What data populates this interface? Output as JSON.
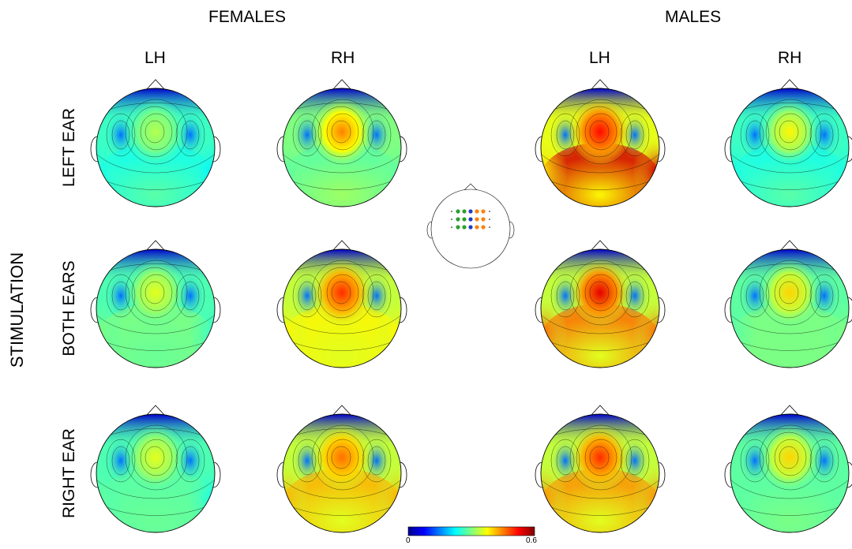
{
  "groups": {
    "females": "FEMALES",
    "males": "MALES"
  },
  "hemispheres": {
    "left": "LH",
    "right": "RH"
  },
  "axis_title": "STIMULATION",
  "conditions": {
    "left_ear": "LEFT EAR",
    "both_ears": "BOTH EARS",
    "right_ear": "RIGHT EAR"
  },
  "colorbar": {
    "min_label": "0",
    "max_label": "0.6",
    "colormap": "jet",
    "colors": [
      "#00008f",
      "#0000ff",
      "#0080ff",
      "#00ffff",
      "#80ff80",
      "#ffff00",
      "#ff8000",
      "#ff0000",
      "#800000"
    ]
  },
  "electrode_legend": {
    "colors": {
      "left": "#2ca02c",
      "mid": "#1f3fbf",
      "right": "#ff7f0e"
    }
  },
  "maps": [
    {
      "name": "female-lh-left-ear",
      "central": 0.33,
      "periph": 0.26,
      "rim": [
        0.24,
        0.22
      ]
    },
    {
      "name": "female-rh-left-ear",
      "central": 0.45,
      "periph": 0.3,
      "rim": [
        0.28,
        0.28
      ]
    },
    {
      "name": "male-lh-left-ear",
      "central": 0.52,
      "periph": 0.36,
      "rim": [
        0.4,
        0.55
      ]
    },
    {
      "name": "male-rh-left-ear",
      "central": 0.38,
      "periph": 0.26,
      "rim": [
        0.24,
        0.24
      ]
    },
    {
      "name": "female-lh-both-ears",
      "central": 0.36,
      "periph": 0.27,
      "rim": [
        0.3,
        0.26
      ]
    },
    {
      "name": "female-rh-both-ears",
      "central": 0.5,
      "periph": 0.34,
      "rim": [
        0.38,
        0.38
      ]
    },
    {
      "name": "male-lh-both-ears",
      "central": 0.54,
      "periph": 0.34,
      "rim": [
        0.46,
        0.46
      ]
    },
    {
      "name": "male-rh-both-ears",
      "central": 0.4,
      "periph": 0.28,
      "rim": [
        0.28,
        0.3
      ]
    },
    {
      "name": "female-lh-right-ear",
      "central": 0.36,
      "periph": 0.27,
      "rim": [
        0.28,
        0.24
      ]
    },
    {
      "name": "female-rh-right-ear",
      "central": 0.46,
      "periph": 0.34,
      "rim": [
        0.42,
        0.42
      ]
    },
    {
      "name": "male-lh-right-ear",
      "central": 0.5,
      "periph": 0.34,
      "rim": [
        0.44,
        0.44
      ]
    },
    {
      "name": "male-rh-right-ear",
      "central": 0.4,
      "periph": 0.28,
      "rim": [
        0.28,
        0.28
      ]
    }
  ]
}
